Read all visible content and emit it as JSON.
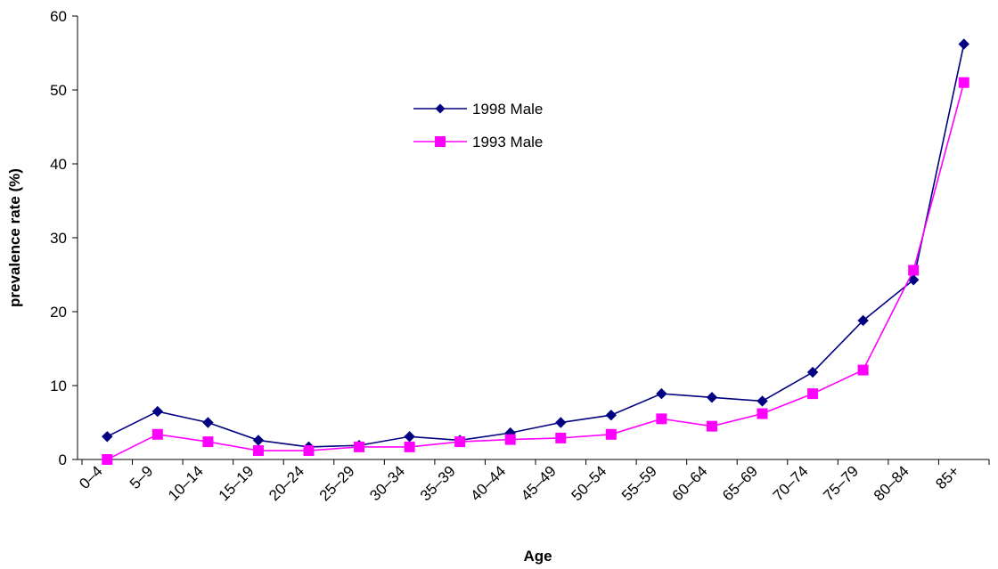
{
  "chart_data": {
    "type": "line",
    "title": "",
    "xlabel": "Age",
    "ylabel": "prevalence rate (%)",
    "ylim": [
      0,
      60
    ],
    "yticks": [
      0,
      10,
      20,
      30,
      40,
      50,
      60
    ],
    "grid": false,
    "legend_position": "upper-center",
    "categories": [
      "0–4",
      "5–9",
      "10–14",
      "15–19",
      "20–24",
      "25–29",
      "30–34",
      "35–39",
      "40–44",
      "45–49",
      "50–54",
      "55–59",
      "60–64",
      "65–69",
      "70–74",
      "75–79",
      "80–84",
      "85+"
    ],
    "series": [
      {
        "name": "1998 Male",
        "color": "#000080",
        "marker": "diamond",
        "values": [
          3.1,
          6.5,
          5.0,
          2.6,
          1.7,
          1.9,
          3.1,
          2.6,
          3.6,
          5.0,
          6.0,
          8.9,
          8.4,
          7.9,
          11.8,
          18.8,
          24.3,
          56.2
        ]
      },
      {
        "name": "1993 Male",
        "color": "#ff00ff",
        "marker": "square",
        "values": [
          0.0,
          3.4,
          2.4,
          1.2,
          1.2,
          1.7,
          1.7,
          2.4,
          2.7,
          2.9,
          3.4,
          5.5,
          4.5,
          6.2,
          8.9,
          12.1,
          25.6,
          51.0
        ]
      }
    ]
  }
}
